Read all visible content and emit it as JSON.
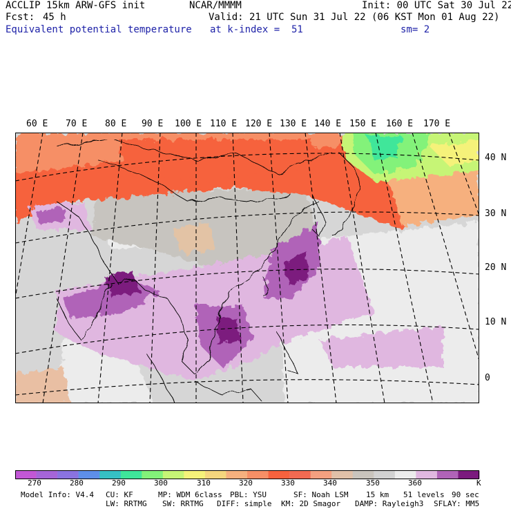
{
  "header": {
    "model": "ACCLIP 15km ARW-GFS init",
    "org": "NCAR/MMMM",
    "init": "Init: 00 UTC Sat 30 Jul 22",
    "fcst_label": "Fcst:",
    "fcst_value": "45 h",
    "valid": "Valid: 21 UTC Sun 31 Jul 22 (06 KST Mon 01 Aug 22)",
    "variable": "Equivalent potential temperature",
    "level": "at k-index =  51",
    "smoothing": "sm= 2"
  },
  "map": {
    "lon_labels": [
      "60 E",
      "70 E",
      "80 E",
      "90 E",
      "100 E",
      "110 E",
      "120 E",
      "130 E",
      "140 E",
      "150 E",
      "160 E",
      "170 E"
    ],
    "lat_labels": [
      "40 N",
      "30 N",
      "20 N",
      "10 N",
      "0"
    ]
  },
  "colorbar": {
    "unit": "K",
    "ticks": [
      "270",
      "280",
      "290",
      "300",
      "310",
      "320",
      "330",
      "340",
      "350",
      "360"
    ],
    "colors": [
      "#c257d6",
      "#a565d8",
      "#8a73e0",
      "#5e8fe8",
      "#36c0c4",
      "#3fe69a",
      "#83f27a",
      "#c6f576",
      "#f5f27a",
      "#f5d67e",
      "#f6b07e",
      "#f68f66",
      "#f6623e",
      "#f26a52",
      "#f4a080",
      "#e0c0a8",
      "#c9c4bd",
      "#d2d2d2",
      "#ececec",
      "#e0b7e0",
      "#b063b8",
      "#7b1a7e"
    ]
  },
  "footer": {
    "line1": [
      "Model Info: V4.4",
      "CU: KF",
      "MP: WDM 6class",
      "PBL: YSU",
      "SF: Noah LSM",
      "15 km",
      "51 levels",
      "90 sec"
    ],
    "line2": [
      "LW: RRTMG",
      "SW: RRTMG",
      "DIFF: simple",
      "KM: 2D Smagor",
      "DAMP: Rayleigh3",
      "SFLAY: MM5"
    ]
  }
}
